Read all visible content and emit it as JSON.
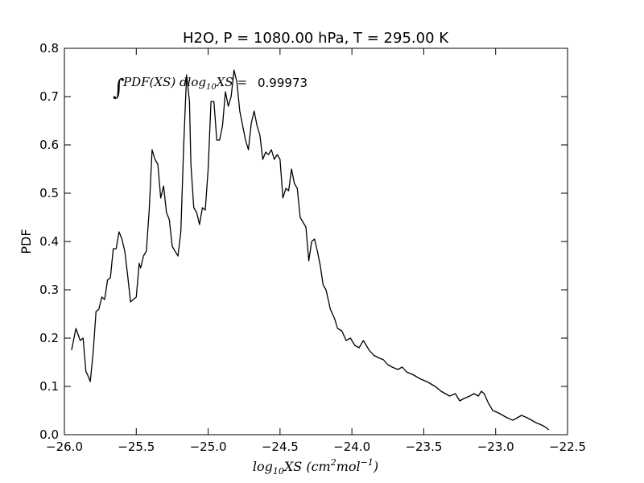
{
  "chart_data": {
    "type": "line",
    "title": "H2O, P = 1080.00 hPa, T = 295.00 K",
    "xlabel": "log10XS (cm2mol-1)",
    "ylabel": "PDF",
    "xlim": [
      -26.0,
      -22.5
    ],
    "ylim": [
      0.0,
      0.8
    ],
    "grid": false,
    "x_ticks": [
      "−26.0",
      "−25.5",
      "−25.0",
      "−24.5",
      "−24.0",
      "−23.5",
      "−23.0",
      "−22.5"
    ],
    "x_tick_values": [
      -26.0,
      -25.5,
      -25.0,
      -24.5,
      -24.0,
      -23.5,
      -23.0,
      -22.5
    ],
    "y_ticks": [
      "0.0",
      "0.1",
      "0.2",
      "0.3",
      "0.4",
      "0.5",
      "0.6",
      "0.7",
      "0.8"
    ],
    "y_tick_values": [
      0.0,
      0.1,
      0.2,
      0.3,
      0.4,
      0.5,
      0.6,
      0.7,
      0.8
    ],
    "annotation": {
      "text": "∫PDF(XS) dlog10XS =  0.99973",
      "value": "0.99973"
    },
    "series": [
      {
        "color": "#000000",
        "x": [
          -25.95,
          -25.92,
          -25.89,
          -25.87,
          -25.85,
          -25.84,
          -25.82,
          -25.8,
          -25.78,
          -25.76,
          -25.74,
          -25.72,
          -25.7,
          -25.68,
          -25.66,
          -25.64,
          -25.62,
          -25.6,
          -25.58,
          -25.56,
          -25.54,
          -25.52,
          -25.5,
          -25.48,
          -25.47,
          -25.45,
          -25.43,
          -25.41,
          -25.39,
          -25.37,
          -25.35,
          -25.33,
          -25.31,
          -25.29,
          -25.27,
          -25.25,
          -25.23,
          -25.21,
          -25.19,
          -25.17,
          -25.15,
          -25.13,
          -25.12,
          -25.1,
          -25.08,
          -25.06,
          -25.04,
          -25.02,
          -25.0,
          -24.98,
          -24.96,
          -24.94,
          -24.92,
          -24.9,
          -24.88,
          -24.86,
          -24.84,
          -24.82,
          -24.8,
          -24.78,
          -24.76,
          -24.74,
          -24.72,
          -24.7,
          -24.68,
          -24.66,
          -24.64,
          -24.62,
          -24.6,
          -24.58,
          -24.56,
          -24.54,
          -24.52,
          -24.5,
          -24.48,
          -24.46,
          -24.44,
          -24.42,
          -24.4,
          -24.38,
          -24.36,
          -24.34,
          -24.32,
          -24.3,
          -24.28,
          -24.26,
          -24.24,
          -24.22,
          -24.2,
          -24.18,
          -24.15,
          -24.12,
          -24.1,
          -24.07,
          -24.04,
          -24.01,
          -23.98,
          -23.95,
          -23.92,
          -23.88,
          -23.85,
          -23.82,
          -23.78,
          -23.75,
          -23.72,
          -23.68,
          -23.65,
          -23.62,
          -23.58,
          -23.55,
          -23.52,
          -23.48,
          -23.45,
          -23.42,
          -23.38,
          -23.35,
          -23.32,
          -23.28,
          -23.25,
          -23.22,
          -23.18,
          -23.15,
          -23.12,
          -23.1,
          -23.08,
          -23.05,
          -23.02,
          -22.98,
          -22.95,
          -22.92,
          -22.88,
          -22.85,
          -22.82,
          -22.78,
          -22.75,
          -22.72,
          -22.68,
          -22.65,
          -22.63
        ],
        "y": [
          0.175,
          0.22,
          0.195,
          0.2,
          0.13,
          0.125,
          0.11,
          0.17,
          0.255,
          0.26,
          0.285,
          0.28,
          0.32,
          0.325,
          0.385,
          0.385,
          0.42,
          0.405,
          0.38,
          0.33,
          0.275,
          0.28,
          0.285,
          0.355,
          0.345,
          0.37,
          0.38,
          0.465,
          0.59,
          0.57,
          0.56,
          0.49,
          0.515,
          0.46,
          0.445,
          0.39,
          0.38,
          0.37,
          0.42,
          0.6,
          0.745,
          0.69,
          0.56,
          0.47,
          0.46,
          0.435,
          0.47,
          0.465,
          0.55,
          0.69,
          0.69,
          0.61,
          0.61,
          0.64,
          0.71,
          0.68,
          0.7,
          0.755,
          0.73,
          0.67,
          0.64,
          0.61,
          0.59,
          0.645,
          0.67,
          0.64,
          0.62,
          0.57,
          0.585,
          0.58,
          0.59,
          0.57,
          0.58,
          0.57,
          0.49,
          0.51,
          0.505,
          0.55,
          0.52,
          0.51,
          0.45,
          0.44,
          0.43,
          0.36,
          0.4,
          0.405,
          0.38,
          0.35,
          0.31,
          0.3,
          0.26,
          0.24,
          0.22,
          0.215,
          0.195,
          0.2,
          0.185,
          0.18,
          0.195,
          0.175,
          0.165,
          0.16,
          0.155,
          0.145,
          0.14,
          0.135,
          0.14,
          0.13,
          0.125,
          0.12,
          0.115,
          0.11,
          0.105,
          0.1,
          0.09,
          0.085,
          0.08,
          0.085,
          0.07,
          0.075,
          0.08,
          0.085,
          0.08,
          0.09,
          0.085,
          0.065,
          0.05,
          0.045,
          0.04,
          0.035,
          0.03,
          0.035,
          0.04,
          0.035,
          0.03,
          0.025,
          0.02,
          0.015,
          0.01
        ]
      }
    ]
  }
}
